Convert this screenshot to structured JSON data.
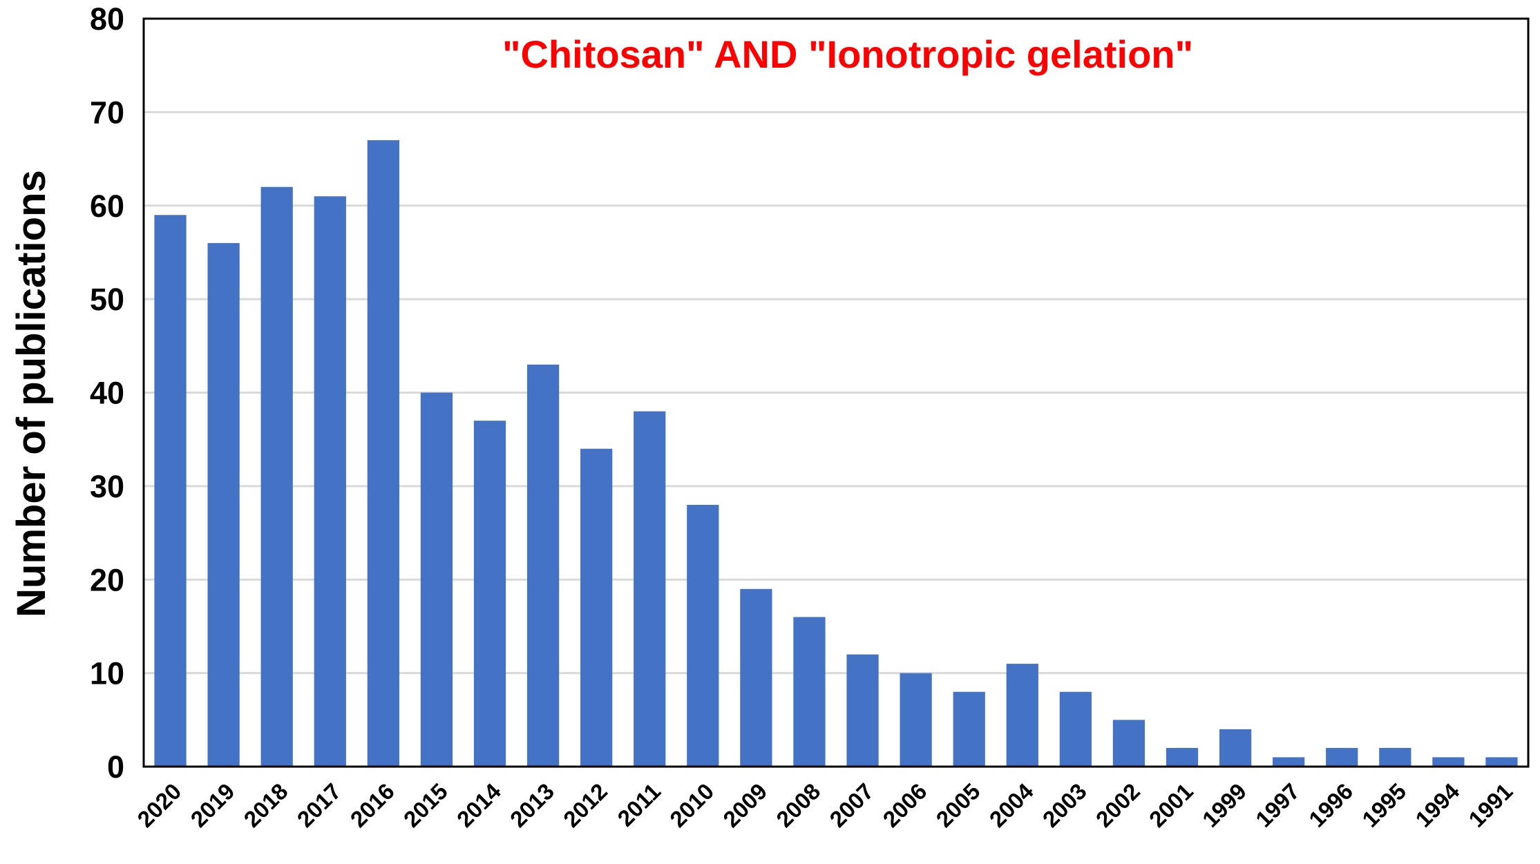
{
  "chart_data": {
    "type": "bar",
    "title": "\"Chitosan\" AND \"Ionotropic gelation\"",
    "xlabel": "",
    "ylabel": "Number of publications",
    "ylim": [
      0,
      80
    ],
    "yticks": [
      "0",
      "10",
      "20",
      "30",
      "40",
      "50",
      "60",
      "70",
      "80"
    ],
    "categories": [
      "2020",
      "2019",
      "2018",
      "2017",
      "2016",
      "2015",
      "2014",
      "2013",
      "2012",
      "2011",
      "2010",
      "2009",
      "2008",
      "2007",
      "2006",
      "2005",
      "2004",
      "2003",
      "2002",
      "2001",
      "1999",
      "1997",
      "1996",
      "1995",
      "1994",
      "1991"
    ],
    "values": [
      59,
      56,
      62,
      61,
      67,
      40,
      37,
      43,
      34,
      38,
      28,
      19,
      16,
      12,
      10,
      8,
      11,
      8,
      5,
      2,
      4,
      1,
      2,
      2,
      1,
      1
    ],
    "grid": true,
    "legend": "none",
    "colors": {
      "bar": "#4472C4",
      "title": "#FF0000",
      "grid": "#D9D9D9",
      "frame": "#000000"
    }
  }
}
